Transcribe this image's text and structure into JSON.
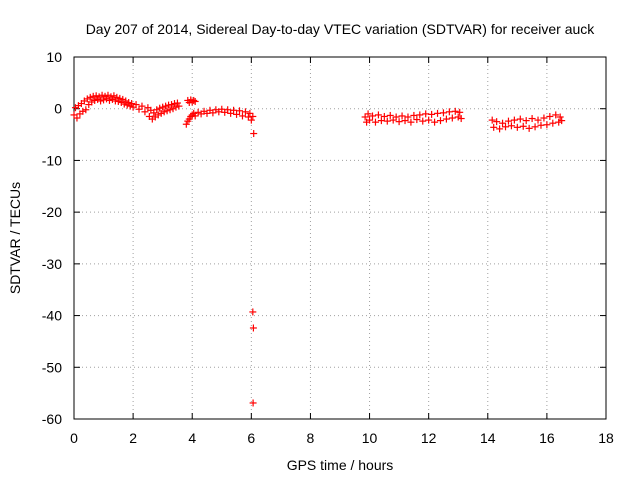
{
  "chart_data": {
    "type": "scatter",
    "title": "Day 207 of 2014, Sidereal Day-to-day VTEC variation (SDTVAR) for receiver auck",
    "xlabel": "GPS time / hours",
    "ylabel": "SDTVAR / TECUs",
    "xlim": [
      0,
      18
    ],
    "ylim": [
      -60,
      10
    ],
    "xticks": [
      0,
      2,
      4,
      6,
      8,
      10,
      12,
      14,
      16,
      18
    ],
    "yticks": [
      -60,
      -50,
      -40,
      -30,
      -20,
      -10,
      0,
      10
    ],
    "grid": true,
    "marker": "+",
    "color": "#ff0000",
    "series": [
      {
        "name": "SDTVAR",
        "points": [
          [
            0.0,
            -1.2
          ],
          [
            0.05,
            0.2
          ],
          [
            0.1,
            -1.8
          ],
          [
            0.15,
            0.6
          ],
          [
            0.2,
            -1.0
          ],
          [
            0.25,
            1.0
          ],
          [
            0.3,
            -0.5
          ],
          [
            0.35,
            1.5
          ],
          [
            0.4,
            -0.2
          ],
          [
            0.45,
            1.9
          ],
          [
            0.5,
            0.8
          ],
          [
            0.55,
            2.2
          ],
          [
            0.6,
            1.3
          ],
          [
            0.65,
            2.4
          ],
          [
            0.7,
            1.6
          ],
          [
            0.75,
            2.5
          ],
          [
            0.8,
            1.8
          ],
          [
            0.85,
            2.3
          ],
          [
            0.9,
            1.5
          ],
          [
            0.95,
            2.6
          ],
          [
            1.0,
            1.7
          ],
          [
            1.05,
            2.4
          ],
          [
            1.1,
            1.9
          ],
          [
            1.15,
            2.6
          ],
          [
            1.2,
            1.6
          ],
          [
            1.25,
            2.3
          ],
          [
            1.3,
            1.8
          ],
          [
            1.35,
            2.5
          ],
          [
            1.4,
            1.5
          ],
          [
            1.45,
            2.2
          ],
          [
            1.5,
            1.4
          ],
          [
            1.55,
            2.0
          ],
          [
            1.6,
            1.2
          ],
          [
            1.65,
            1.8
          ],
          [
            1.7,
            0.9
          ],
          [
            1.75,
            1.5
          ],
          [
            1.8,
            0.7
          ],
          [
            1.85,
            1.2
          ],
          [
            1.9,
            0.5
          ],
          [
            1.95,
            1.0
          ],
          [
            2.0,
            0.3
          ],
          [
            2.1,
            0.8
          ],
          [
            2.2,
            -0.1
          ],
          [
            2.3,
            0.5
          ],
          [
            2.4,
            -0.6
          ],
          [
            2.5,
            0.2
          ],
          [
            2.55,
            -1.5
          ],
          [
            2.6,
            -0.3
          ],
          [
            2.65,
            -2.0
          ],
          [
            2.7,
            -0.8
          ],
          [
            2.75,
            -1.6
          ],
          [
            2.8,
            -0.2
          ],
          [
            2.85,
            -1.2
          ],
          [
            2.9,
            0.1
          ],
          [
            2.95,
            -0.9
          ],
          [
            3.0,
            0.3
          ],
          [
            3.05,
            -0.6
          ],
          [
            3.1,
            0.5
          ],
          [
            3.15,
            -0.4
          ],
          [
            3.2,
            0.7
          ],
          [
            3.25,
            -0.2
          ],
          [
            3.3,
            0.8
          ],
          [
            3.35,
            0.0
          ],
          [
            3.4,
            1.0
          ],
          [
            3.45,
            0.3
          ],
          [
            3.5,
            1.1
          ],
          [
            3.55,
            0.5
          ],
          [
            3.85,
            1.6
          ],
          [
            3.9,
            1.2
          ],
          [
            3.95,
            1.7
          ],
          [
            4.0,
            1.3
          ],
          [
            4.05,
            1.6
          ],
          [
            4.1,
            1.4
          ],
          [
            3.8,
            -3.0
          ],
          [
            3.85,
            -2.4
          ],
          [
            3.9,
            -2.0
          ],
          [
            3.95,
            -1.5
          ],
          [
            4.0,
            -1.2
          ],
          [
            4.05,
            -0.9
          ],
          [
            4.1,
            -1.4
          ],
          [
            4.2,
            -0.7
          ],
          [
            4.3,
            -1.0
          ],
          [
            4.4,
            -0.5
          ],
          [
            4.5,
            -0.9
          ],
          [
            4.6,
            -0.3
          ],
          [
            4.7,
            -0.8
          ],
          [
            4.8,
            -0.2
          ],
          [
            4.9,
            -0.6
          ],
          [
            5.0,
            -0.1
          ],
          [
            5.1,
            -0.7
          ],
          [
            5.2,
            -0.2
          ],
          [
            5.3,
            -0.9
          ],
          [
            5.4,
            -0.3
          ],
          [
            5.5,
            -1.1
          ],
          [
            5.6,
            -0.4
          ],
          [
            5.7,
            -1.4
          ],
          [
            5.8,
            -0.6
          ],
          [
            5.9,
            -1.6
          ],
          [
            5.95,
            -0.9
          ],
          [
            6.0,
            -2.2
          ],
          [
            6.05,
            -1.5
          ],
          [
            6.08,
            -4.8
          ],
          [
            6.05,
            -39.3
          ],
          [
            6.07,
            -42.4
          ],
          [
            6.06,
            -56.9
          ],
          [
            9.85,
            -1.6
          ],
          [
            9.9,
            -2.6
          ],
          [
            9.95,
            -1.0
          ],
          [
            10.0,
            -2.2
          ],
          [
            10.1,
            -1.4
          ],
          [
            10.2,
            -2.6
          ],
          [
            10.3,
            -1.2
          ],
          [
            10.4,
            -2.3
          ],
          [
            10.5,
            -1.5
          ],
          [
            10.6,
            -2.4
          ],
          [
            10.7,
            -1.3
          ],
          [
            10.8,
            -2.2
          ],
          [
            10.9,
            -1.6
          ],
          [
            11.0,
            -2.5
          ],
          [
            11.1,
            -1.4
          ],
          [
            11.2,
            -2.3
          ],
          [
            11.3,
            -1.6
          ],
          [
            11.4,
            -2.6
          ],
          [
            11.5,
            -1.3
          ],
          [
            11.6,
            -2.1
          ],
          [
            11.7,
            -1.2
          ],
          [
            11.8,
            -2.4
          ],
          [
            11.9,
            -1.0
          ],
          [
            12.0,
            -2.2
          ],
          [
            12.1,
            -1.1
          ],
          [
            12.2,
            -2.6
          ],
          [
            12.3,
            -0.9
          ],
          [
            12.4,
            -2.3
          ],
          [
            12.5,
            -0.8
          ],
          [
            12.6,
            -2.0
          ],
          [
            12.7,
            -0.6
          ],
          [
            12.8,
            -1.8
          ],
          [
            12.9,
            -0.5
          ],
          [
            13.0,
            -1.6
          ],
          [
            13.05,
            -0.7
          ],
          [
            13.1,
            -1.9
          ],
          [
            14.15,
            -2.2
          ],
          [
            14.2,
            -3.6
          ],
          [
            14.3,
            -2.5
          ],
          [
            14.4,
            -3.9
          ],
          [
            14.5,
            -2.8
          ],
          [
            14.6,
            -3.5
          ],
          [
            14.7,
            -2.4
          ],
          [
            14.8,
            -3.3
          ],
          [
            14.9,
            -2.2
          ],
          [
            15.0,
            -3.6
          ],
          [
            15.1,
            -2.0
          ],
          [
            15.2,
            -3.4
          ],
          [
            15.3,
            -2.3
          ],
          [
            15.4,
            -3.8
          ],
          [
            15.5,
            -1.9
          ],
          [
            15.6,
            -3.5
          ],
          [
            15.7,
            -2.2
          ],
          [
            15.8,
            -3.2
          ],
          [
            15.9,
            -1.8
          ],
          [
            16.0,
            -3.1
          ],
          [
            16.1,
            -1.5
          ],
          [
            16.2,
            -2.8
          ],
          [
            16.3,
            -1.2
          ],
          [
            16.4,
            -2.6
          ],
          [
            16.45,
            -1.6
          ],
          [
            16.5,
            -2.3
          ]
        ]
      }
    ]
  }
}
